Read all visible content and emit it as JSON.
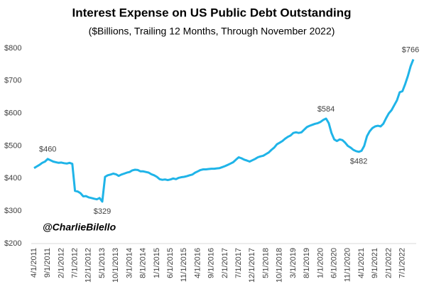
{
  "chart_data": {
    "type": "line",
    "title": "Interest Expense on US Public Debt Outstanding",
    "subtitle": "($Billions, Trailing 12 Months, Through November 2022)",
    "watermark": "@CharlieBilello",
    "categories": [
      "4/1/2011",
      null,
      null,
      null,
      null,
      "9/1/2011",
      null,
      null,
      null,
      null,
      "2/1/2012",
      null,
      null,
      null,
      null,
      "7/1/2012",
      null,
      null,
      null,
      null,
      "12/1/2012",
      null,
      null,
      null,
      null,
      "5/1/2013",
      null,
      null,
      null,
      null,
      "10/1/2013",
      null,
      null,
      null,
      null,
      "3/1/2014",
      null,
      null,
      null,
      null,
      "8/1/2014",
      null,
      null,
      null,
      null,
      "1/1/2015",
      null,
      null,
      null,
      null,
      "6/1/2015",
      null,
      null,
      null,
      null,
      "11/1/2015",
      null,
      null,
      null,
      null,
      "4/1/2016",
      null,
      null,
      null,
      null,
      "9/1/2016",
      null,
      null,
      null,
      null,
      "2/1/2017",
      null,
      null,
      null,
      null,
      "7/1/2017",
      null,
      null,
      null,
      null,
      "12/1/2017",
      null,
      null,
      null,
      null,
      "5/1/2018",
      null,
      null,
      null,
      null,
      "10/1/2018",
      null,
      null,
      null,
      null,
      "3/1/2019",
      null,
      null,
      null,
      null,
      "8/1/2019",
      null,
      null,
      null,
      null,
      "1/1/2020",
      null,
      null,
      null,
      null,
      "6/1/2020",
      null,
      null,
      null,
      null,
      "11/1/2020",
      null,
      null,
      null,
      null,
      "4/1/2021",
      null,
      null,
      null,
      null,
      "9/1/2021",
      null,
      null,
      null,
      null,
      "2/1/2022",
      null,
      null,
      null,
      null,
      "7/1/2022",
      null,
      null,
      null,
      null
    ],
    "values": [
      432,
      437,
      442,
      448,
      452,
      460,
      456,
      452,
      450,
      448,
      449,
      447,
      446,
      448,
      445,
      362,
      360,
      355,
      345,
      346,
      342,
      340,
      338,
      336,
      340,
      329,
      405,
      410,
      412,
      415,
      413,
      408,
      412,
      415,
      418,
      420,
      425,
      427,
      426,
      422,
      422,
      420,
      418,
      413,
      410,
      405,
      398,
      396,
      397,
      395,
      397,
      400,
      398,
      402,
      404,
      405,
      407,
      410,
      412,
      418,
      422,
      426,
      428,
      428,
      429,
      430,
      430,
      431,
      432,
      435,
      438,
      442,
      446,
      450,
      458,
      465,
      462,
      458,
      455,
      452,
      456,
      460,
      465,
      468,
      470,
      475,
      480,
      488,
      495,
      505,
      510,
      515,
      522,
      528,
      532,
      540,
      542,
      540,
      542,
      550,
      558,
      562,
      565,
      568,
      570,
      574,
      580,
      584,
      570,
      540,
      520,
      515,
      520,
      518,
      510,
      500,
      495,
      488,
      484,
      482,
      485,
      500,
      530,
      545,
      555,
      560,
      562,
      560,
      568,
      585,
      600,
      610,
      625,
      640,
      665,
      668,
      690,
      715,
      745,
      766
    ],
    "value_labels": [
      null,
      null,
      null,
      null,
      null,
      "$460",
      null,
      null,
      null,
      null,
      null,
      null,
      null,
      null,
      null,
      null,
      null,
      null,
      null,
      null,
      null,
      null,
      null,
      null,
      null,
      "$329",
      null,
      null,
      null,
      null,
      null,
      null,
      null,
      null,
      null,
      null,
      null,
      null,
      null,
      null,
      null,
      null,
      null,
      null,
      null,
      null,
      null,
      null,
      null,
      null,
      null,
      null,
      null,
      null,
      null,
      null,
      null,
      null,
      null,
      null,
      null,
      null,
      null,
      null,
      null,
      null,
      null,
      null,
      null,
      null,
      null,
      null,
      null,
      null,
      null,
      null,
      null,
      null,
      null,
      null,
      null,
      null,
      null,
      null,
      null,
      null,
      null,
      null,
      null,
      null,
      null,
      null,
      null,
      null,
      null,
      null,
      null,
      null,
      null,
      null,
      null,
      null,
      null,
      null,
      null,
      null,
      null,
      "$584",
      null,
      null,
      null,
      null,
      null,
      null,
      null,
      null,
      null,
      null,
      null,
      "$482",
      null,
      null,
      null,
      null,
      null,
      null,
      null,
      null,
      null,
      null,
      null,
      null,
      null,
      null,
      null,
      null,
      null,
      null,
      null,
      "$766"
    ],
    "color": "#1fb4e8",
    "ylim": [
      200,
      800
    ],
    "yticks": [
      {
        "value": 200,
        "label": "$200"
      },
      {
        "value": 300,
        "label": "$300"
      },
      {
        "value": 400,
        "label": "$400"
      },
      {
        "value": 500,
        "label": "$500"
      },
      {
        "value": 600,
        "label": "$600"
      },
      {
        "value": 700,
        "label": "$700"
      },
      {
        "value": 800,
        "label": "$800"
      }
    ],
    "grid": false
  }
}
